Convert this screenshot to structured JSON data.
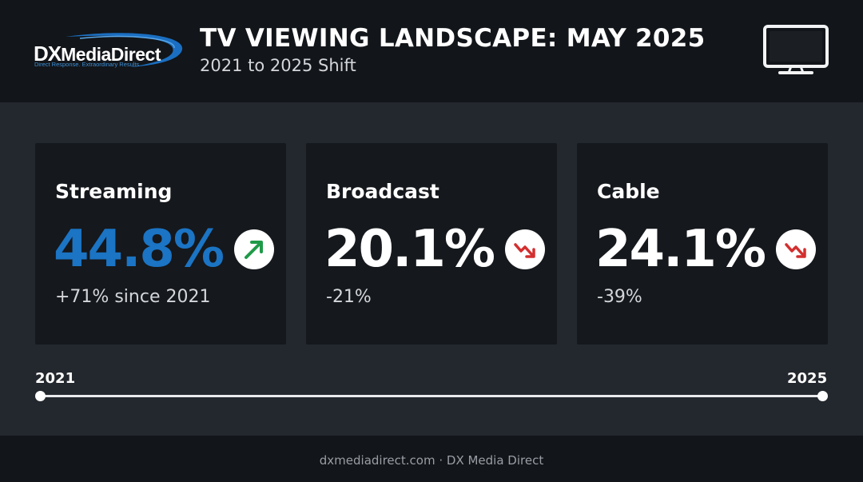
{
  "logo": {
    "brand_prefix": "DX",
    "brand_rest": "MediaDirect",
    "tagline": "Direct Response. Extraordinary Results"
  },
  "header": {
    "title": "TV VIEWING LANDSCAPE: MAY 2025",
    "subtitle": "2021 to 2025 Shift",
    "icon": "tv-icon"
  },
  "cards": [
    {
      "label": "Streaming",
      "value": "44.8%",
      "change": "+71% since 2021",
      "trend": "up",
      "value_color": "#1b74c4",
      "badge_icon": "trend-up-icon",
      "badge_color": "#1f9a48"
    },
    {
      "label": "Broadcast",
      "value": "20.1%",
      "change": "-21%",
      "trend": "down",
      "value_color": "#ffffff",
      "badge_icon": "trend-down-icon",
      "badge_color": "#d32f2f"
    },
    {
      "label": "Cable",
      "value": "24.1%",
      "change": "-39%",
      "trend": "down",
      "value_color": "#ffffff",
      "badge_icon": "trend-down-icon",
      "badge_color": "#d32f2f"
    }
  ],
  "timeline": {
    "start_label": "2021",
    "end_label": "2025"
  },
  "footer": {
    "text": "dxmediadirect.com · DX Media Direct"
  }
}
